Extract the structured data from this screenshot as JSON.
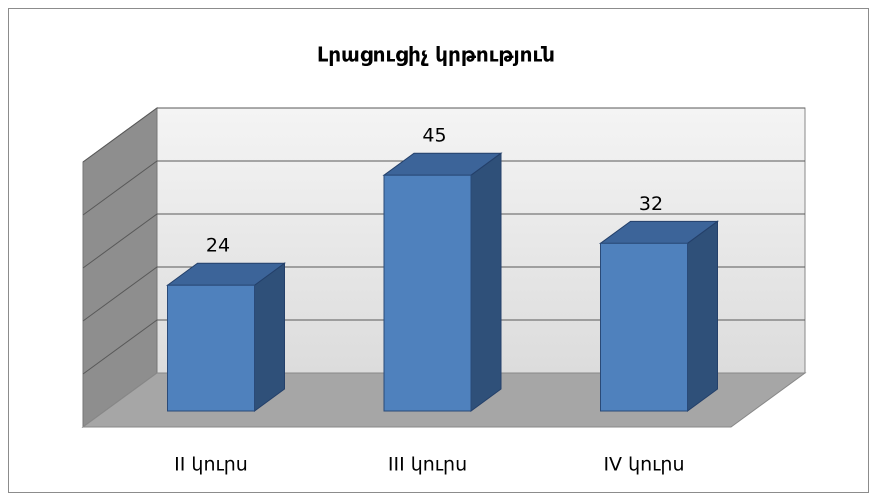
{
  "chart_data": {
    "type": "bar3d",
    "title": "Լրացուցիչ կրթություն",
    "categories": [
      "II կուրս",
      "III կուրս",
      "IV կուրս"
    ],
    "values": [
      24,
      45,
      32
    ],
    "color": "#4f81bd",
    "ylim": [
      0,
      50
    ],
    "yticks": [
      0,
      10,
      20,
      30,
      40,
      50
    ],
    "grid": true
  }
}
